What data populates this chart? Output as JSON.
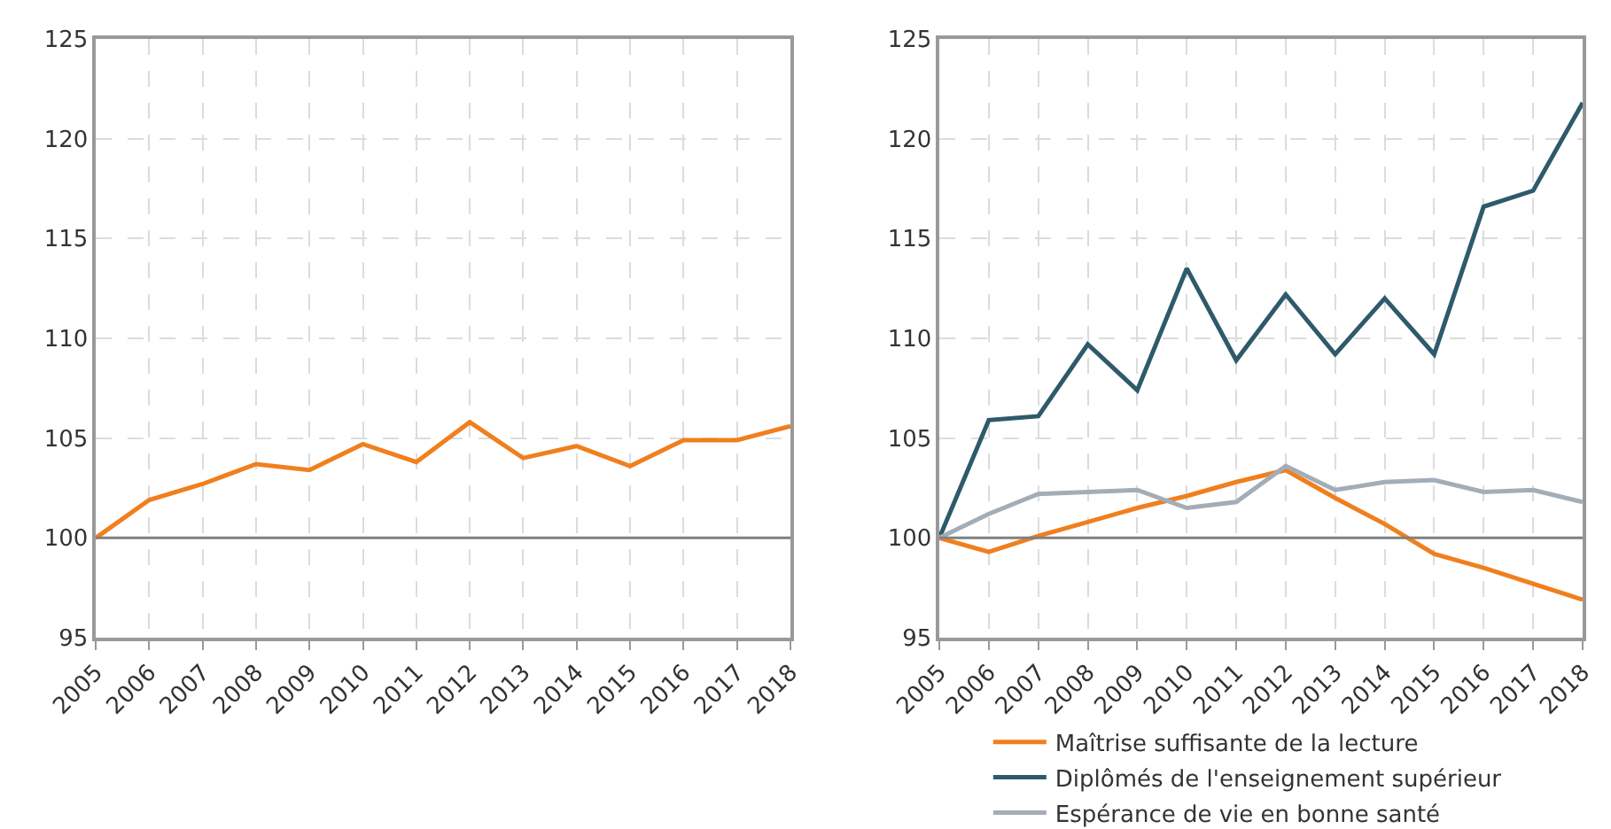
{
  "chart_data": [
    {
      "type": "line",
      "x": [
        2005,
        2006,
        2007,
        2008,
        2009,
        2010,
        2011,
        2012,
        2013,
        2014,
        2015,
        2016,
        2017,
        2018
      ],
      "series": [
        {
          "color": "#f07f1e",
          "values": [
            100,
            101.9,
            102.7,
            103.7,
            103.4,
            104.7,
            103.8,
            105.8,
            104.0,
            104.6,
            103.6,
            104.9,
            104.9,
            105.6
          ]
        }
      ],
      "xlim": [
        2005,
        2018
      ],
      "xticks": [
        2005,
        2006,
        2007,
        2008,
        2009,
        2010,
        2011,
        2012,
        2013,
        2014,
        2015,
        2016,
        2017,
        2018
      ],
      "ylim": [
        95,
        125
      ],
      "yticks": [
        95,
        100,
        105,
        110,
        115,
        120,
        125
      ],
      "grid": true,
      "legend": false,
      "marker": "none",
      "line_style": "solid",
      "ref_lines": [
        {
          "axis": "y",
          "value": 100,
          "color": "#808080"
        }
      ]
    },
    {
      "type": "line",
      "x": [
        2005,
        2006,
        2007,
        2008,
        2009,
        2010,
        2011,
        2012,
        2013,
        2014,
        2015,
        2016,
        2017,
        2018
      ],
      "series": [
        {
          "name": "Maîtrise suffisante de la lecture",
          "color": "#f07f1e",
          "values": [
            100,
            99.3,
            100.1,
            100.8,
            101.5,
            102.1,
            102.8,
            103.4,
            102.0,
            100.7,
            99.2,
            98.5,
            97.7,
            96.9
          ]
        },
        {
          "name": "Diplômés de l'enseignement supérieur",
          "color": "#2e5a6b",
          "values": [
            100,
            105.9,
            106.1,
            109.7,
            107.4,
            113.5,
            108.9,
            112.2,
            109.2,
            112.0,
            109.2,
            116.6,
            117.4,
            121.8
          ]
        },
        {
          "name": "Espérance de vie en bonne santé",
          "color": "#a3adb8",
          "values": [
            100,
            101.2,
            102.2,
            102.3,
            102.4,
            101.5,
            101.8,
            103.6,
            102.4,
            102.8,
            102.9,
            102.3,
            102.4,
            101.8
          ]
        }
      ],
      "xlim": [
        2005,
        2018
      ],
      "xticks": [
        2005,
        2006,
        2007,
        2008,
        2009,
        2010,
        2011,
        2012,
        2013,
        2014,
        2015,
        2016,
        2017,
        2018
      ],
      "ylim": [
        95,
        125
      ],
      "yticks": [
        95,
        100,
        105,
        110,
        115,
        120,
        125
      ],
      "grid": true,
      "legend": "bottom",
      "marker": "none",
      "line_style": "solid",
      "ref_lines": [
        {
          "axis": "y",
          "value": 100,
          "color": "#808080"
        }
      ]
    }
  ]
}
